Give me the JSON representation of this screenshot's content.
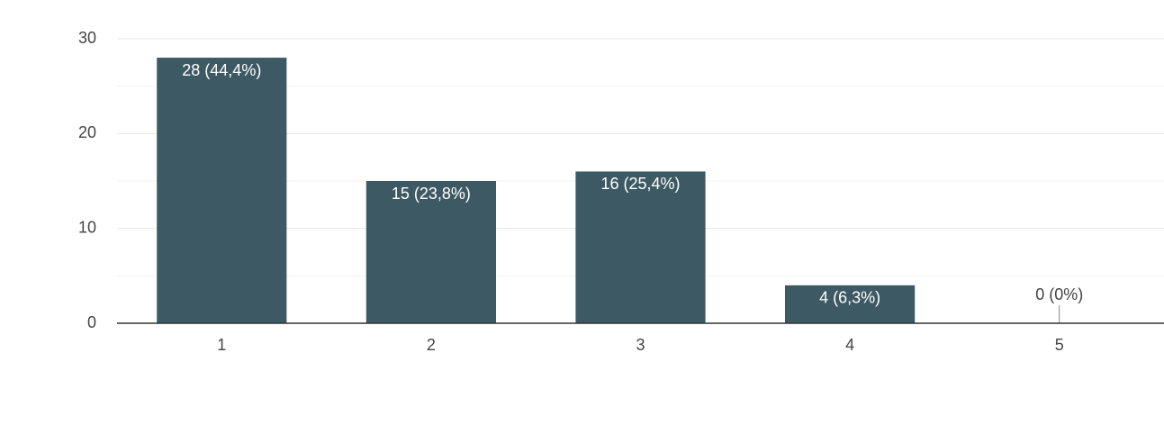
{
  "chart_data": {
    "type": "bar",
    "categories": [
      "1",
      "2",
      "3",
      "4",
      "5"
    ],
    "values": [
      28,
      15,
      16,
      4,
      0
    ],
    "value_labels": [
      "28 (44,4%)",
      "15 (23,8%)",
      "16 (25,4%)",
      "4 (6,3%)",
      "0 (0%)"
    ],
    "color": "#3d5a64",
    "ylim": [
      0,
      30
    ],
    "yticks": [
      0,
      10,
      20,
      30
    ],
    "minor_yticks": [
      5,
      15,
      25
    ],
    "grid": true
  }
}
